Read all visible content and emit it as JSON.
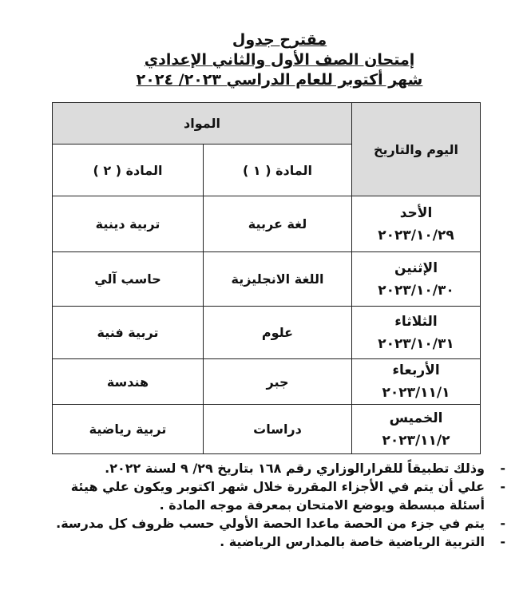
{
  "titles": {
    "line1": "مقترح جدول",
    "line2": "إمتحان الصف الأول والثاني الإعدادي",
    "line3": "شهر أكتوبر للعام الدراسي ٢٠٢٣/ ٢٠٢٤"
  },
  "table": {
    "header_date": "اليوم والتاريخ",
    "header_subjects": "المواد",
    "subject1": "المادة ( ١ )",
    "subject2": "المادة ( ٢ )",
    "rows": [
      {
        "day": "الأحد",
        "date": "٢٠٢٣/١٠/٢٩",
        "s1": "لغة عربية",
        "s2": "تربية دينية"
      },
      {
        "day": "الإثنين",
        "date": "٢٠٢٣/١٠/٣٠",
        "s1": "اللغة الانجليزية",
        "s2": "حاسب آلي"
      },
      {
        "day": "الثلاثاء",
        "date": "٢٠٢٣/١٠/٣١",
        "s1": "علوم",
        "s2": "تربية فنية"
      },
      {
        "day": "الأربعاء",
        "date": "٢٠٢٣/١١/١",
        "s1": "جبر",
        "s2": "هندسة"
      },
      {
        "day": "الخميس",
        "date": "٢٠٢٣/١١/٢",
        "s1": "دراسات",
        "s2": "تربية رياضية"
      }
    ]
  },
  "notes": [
    "وذلك تطبيقاً للقرارالوزاري رقم ١٦٨ بتاريخ ٢٩/ ٩ لسنة ٢٠٢٢.",
    "علي أن يتم في الأجزاء المقررة خلال شهر اكتوبر ويكون علي هيئة أسئلة مبسطة ويوضع الامتحان بمعرفة موجه المادة .",
    "يتم في جزء من الحصة ماعدا الحصة الأولي حسب ظروف كل مدرسة.",
    "التربية الرياضية خاصة بالمدارس الرياضية ."
  ],
  "bullet": "-"
}
